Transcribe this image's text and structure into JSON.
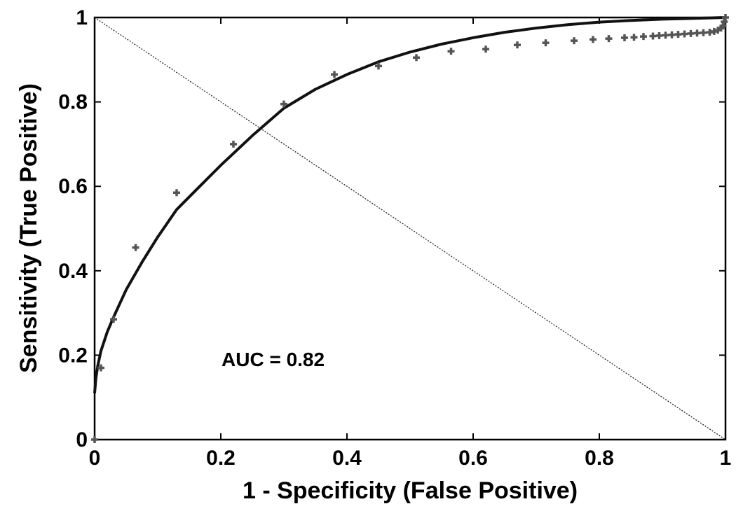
{
  "chart_data": {
    "type": "line",
    "xlabel": "1 - Specificity (False Positive)",
    "ylabel": "Sensitivity (True Positive)",
    "xlim": [
      0,
      1
    ],
    "ylim": [
      0,
      1
    ],
    "xticks": [
      "0",
      "0.2",
      "0.4",
      "0.6",
      "0.8",
      "1"
    ],
    "yticks": [
      "0",
      "0.2",
      "0.4",
      "0.6",
      "0.8",
      "1"
    ],
    "annotation": "AUC = 0.82",
    "grid": false,
    "legend": false,
    "series": [
      {
        "kind": "points",
        "color": "#555555",
        "x": [
          0.0,
          0.01,
          0.03,
          0.065,
          0.13,
          0.22,
          0.3,
          0.38,
          0.45,
          0.51,
          0.565,
          0.62,
          0.67,
          0.715,
          0.76,
          0.79,
          0.815,
          0.84,
          0.855,
          0.87,
          0.885,
          0.895,
          0.905,
          0.915,
          0.925,
          0.935,
          0.945,
          0.955,
          0.965,
          0.975,
          0.982,
          0.988,
          0.993,
          0.996,
          0.998,
          1.0
        ],
        "y": [
          0.0,
          0.17,
          0.285,
          0.455,
          0.585,
          0.7,
          0.795,
          0.865,
          0.885,
          0.905,
          0.92,
          0.925,
          0.935,
          0.94,
          0.945,
          0.948,
          0.95,
          0.952,
          0.953,
          0.955,
          0.956,
          0.957,
          0.958,
          0.959,
          0.96,
          0.961,
          0.962,
          0.963,
          0.964,
          0.965,
          0.967,
          0.97,
          0.975,
          0.98,
          0.99,
          1.0
        ]
      },
      {
        "kind": "fitted-curve",
        "color": "#111111",
        "x": [
          0.0,
          0.002,
          0.005,
          0.01,
          0.02,
          0.03,
          0.05,
          0.075,
          0.1,
          0.13,
          0.16,
          0.2,
          0.25,
          0.3,
          0.35,
          0.4,
          0.45,
          0.5,
          0.55,
          0.6,
          0.65,
          0.7,
          0.75,
          0.8,
          0.85,
          0.9,
          0.95,
          1.0
        ],
        "y": [
          0.11,
          0.145,
          0.175,
          0.21,
          0.255,
          0.29,
          0.355,
          0.42,
          0.48,
          0.545,
          0.59,
          0.65,
          0.72,
          0.785,
          0.83,
          0.865,
          0.895,
          0.918,
          0.937,
          0.952,
          0.965,
          0.975,
          0.983,
          0.989,
          0.993,
          0.996,
          0.998,
          1.0
        ]
      },
      {
        "kind": "chance-diagonal",
        "color": "#222222",
        "x": [
          0,
          1
        ],
        "y": [
          1,
          0
        ]
      }
    ]
  }
}
